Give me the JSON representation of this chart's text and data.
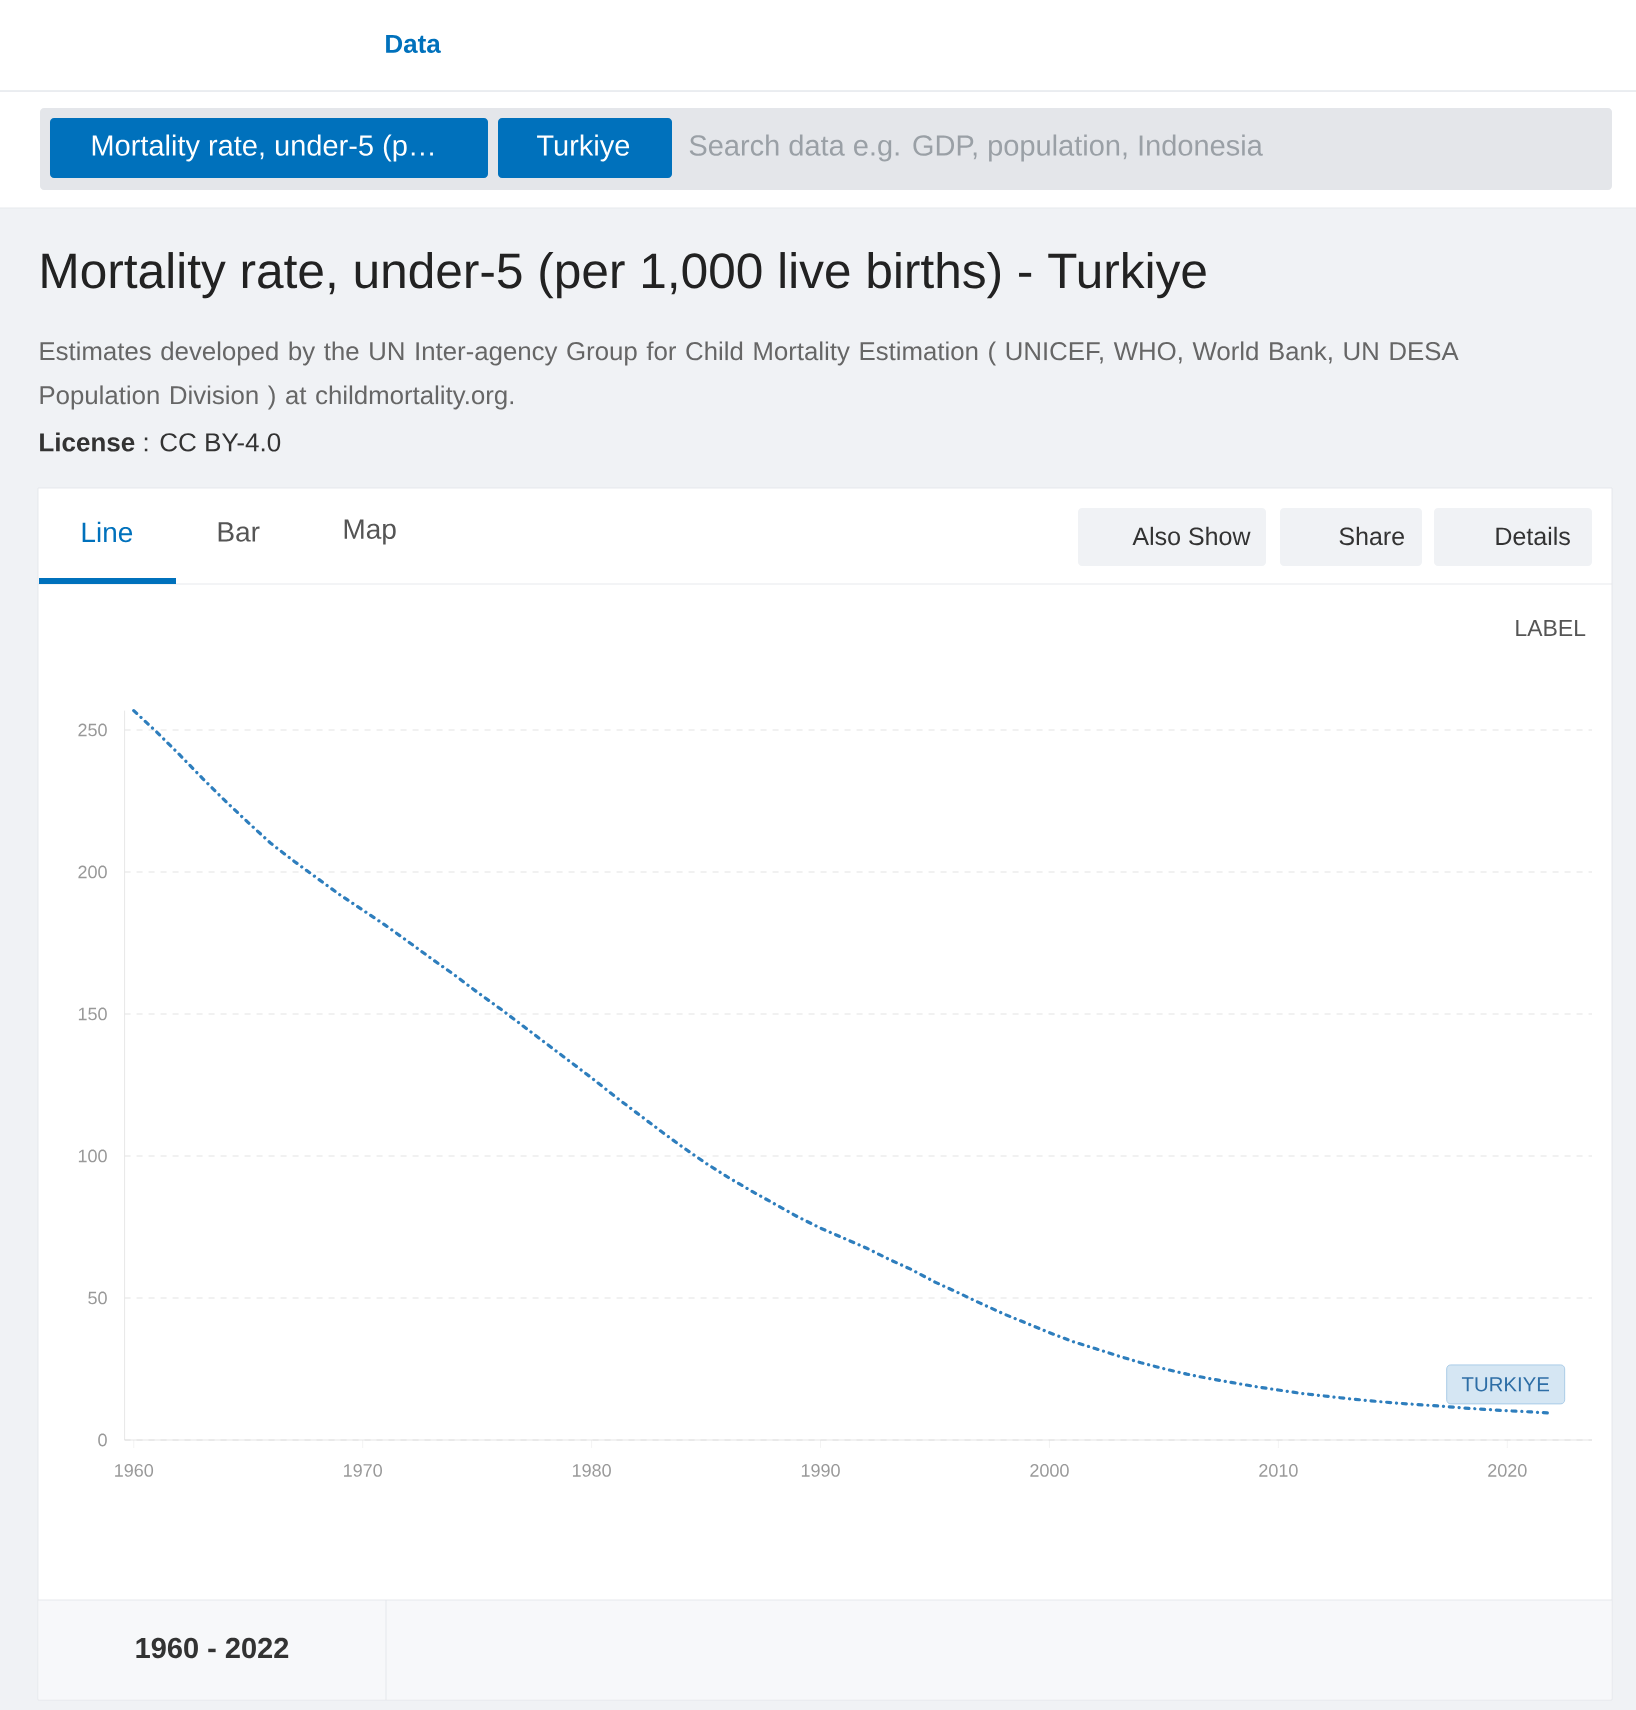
{
  "chart_data": {
    "type": "line",
    "title": "Mortality rate, under-5 (per 1,000 live births) - Turkiye",
    "subtitle": "Estimates developed by the UN Inter-agency Group for Child Mortality Estimation ( UNICEF, WHO, World Bank, UN DESA Population Division ) at childmortality.org.",
    "x": [
      1960,
      1961,
      1962,
      1963,
      1964,
      1965,
      1966,
      1967,
      1968,
      1969,
      1970,
      1971,
      1972,
      1973,
      1974,
      1975,
      1976,
      1977,
      1978,
      1979,
      1980,
      1981,
      1982,
      1983,
      1984,
      1985,
      1986,
      1987,
      1988,
      1989,
      1990,
      1991,
      1992,
      1993,
      1994,
      1995,
      1996,
      1997,
      1998,
      1999,
      2000,
      2001,
      2002,
      2003,
      2004,
      2005,
      2006,
      2007,
      2008,
      2009,
      2010,
      2011,
      2012,
      2013,
      2014,
      2015,
      2016,
      2017,
      2018,
      2019,
      2020,
      2021,
      2022
    ],
    "series": [
      {
        "name": "TURKIYE",
        "color": "#2e7ebd",
        "values": [
          256.8,
          249.3,
          241.3,
          233.0,
          225.0,
          217.4,
          210.0,
          203.8,
          197.9,
          192.0,
          186.6,
          181.2,
          175.4,
          169.5,
          163.8,
          157.7,
          151.9,
          145.8,
          139.7,
          133.6,
          127.5,
          121.1,
          115.0,
          108.9,
          103.0,
          97.4,
          92.3,
          87.6,
          83.1,
          78.6,
          74.6,
          71.1,
          67.6,
          63.6,
          59.9,
          55.6,
          51.9,
          48.1,
          44.4,
          41.1,
          37.8,
          34.7,
          32.2,
          29.6,
          27.2,
          25.1,
          23.2,
          21.6,
          20.2,
          18.8,
          17.6,
          16.4,
          15.5,
          14.6,
          13.8,
          13.1,
          12.5,
          12.0,
          11.3,
          10.8,
          10.3,
          9.9,
          9.4
        ]
      }
    ],
    "xlim": [
      1959.6,
      2023.7
    ],
    "ylim": [
      0,
      256.8
    ],
    "xticks": [
      1960,
      1970,
      1980,
      1990,
      2000,
      2010,
      2020
    ],
    "yticks": [
      0,
      50,
      100,
      150,
      200,
      250
    ],
    "grid": "y",
    "line_style": "dashed",
    "annotations": [
      "Data",
      "Mortality rate, under-5 (p…",
      "Turkiye",
      "Search data e.g. GDP, population, Indonesia",
      "**License** : CC BY-4.0",
      "Line",
      "Bar",
      "Map",
      "Also Show",
      "Share",
      "Details",
      "LABEL",
      "1960 - 2022"
    ]
  }
}
